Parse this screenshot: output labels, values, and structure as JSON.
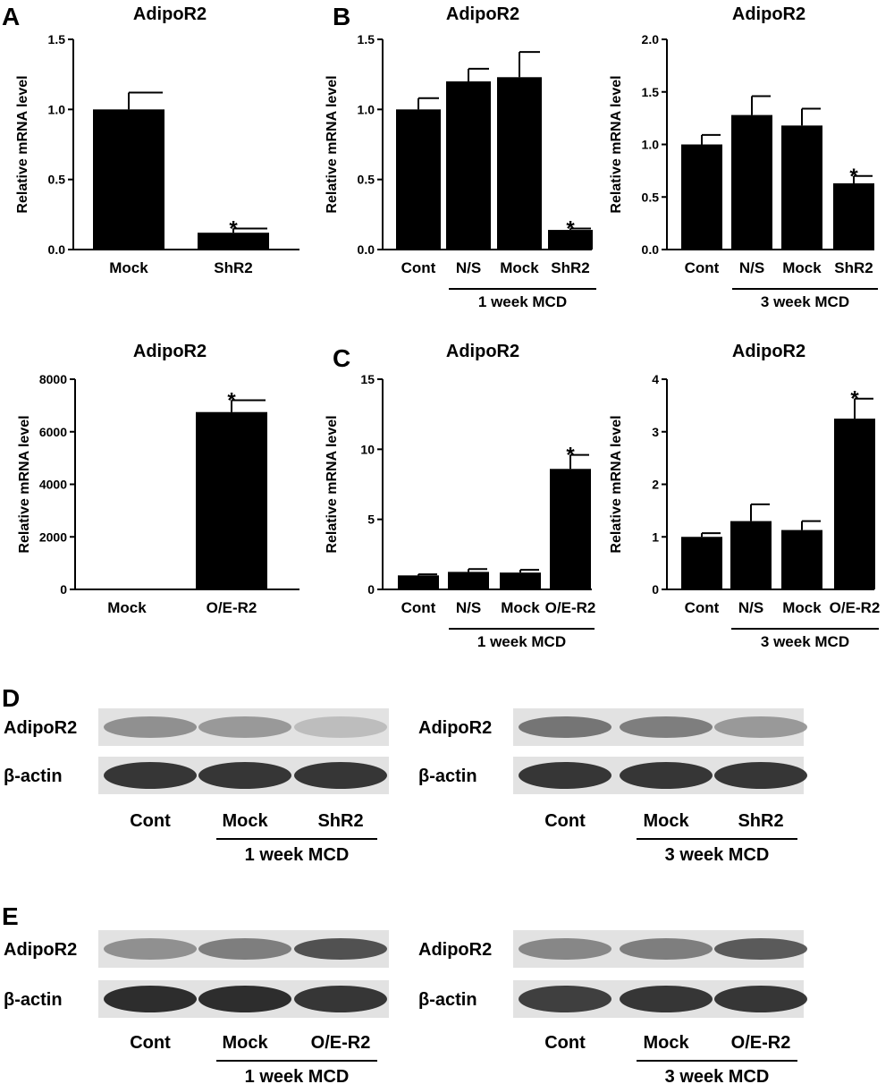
{
  "panel_letters": [
    "A",
    "B",
    "C",
    "D",
    "E"
  ],
  "colors": {
    "bar": "#000000",
    "axis": "#000000",
    "blot_bg": "#e2e2e2",
    "band_strong": "#222222",
    "band_faint": "#9a9a9a"
  },
  "chart_data": [
    {
      "id": "A1",
      "type": "bar",
      "title": "AdipoR2",
      "ylabel": "Relative mRNA level",
      "categories": [
        "Mock",
        "ShR2"
      ],
      "values": [
        1.0,
        0.12
      ],
      "errors": [
        0.12,
        0.03
      ],
      "significant": [
        false,
        true
      ],
      "ylim": [
        0,
        1.5
      ],
      "yticks": [
        "0.0",
        "0.5",
        "1.0",
        "1.5"
      ],
      "group_label": ""
    },
    {
      "id": "B1",
      "type": "bar",
      "title": "AdipoR2",
      "ylabel": "Relative mRNA level",
      "categories": [
        "Cont",
        "N/S",
        "Mock",
        "ShR2"
      ],
      "values": [
        1.0,
        1.2,
        1.23,
        0.14
      ],
      "errors": [
        0.08,
        0.09,
        0.18,
        0.01
      ],
      "significant": [
        false,
        false,
        false,
        true
      ],
      "ylim": [
        0,
        1.5
      ],
      "yticks": [
        "0.0",
        "0.5",
        "1.0",
        "1.5"
      ],
      "group_label": "1 week MCD"
    },
    {
      "id": "B2",
      "type": "bar",
      "title": "AdipoR2",
      "ylabel": "Relative mRNA level",
      "categories": [
        "Cont",
        "N/S",
        "Mock",
        "ShR2"
      ],
      "values": [
        1.0,
        1.28,
        1.18,
        0.63
      ],
      "errors": [
        0.09,
        0.18,
        0.16,
        0.07
      ],
      "significant": [
        false,
        false,
        false,
        true
      ],
      "ylim": [
        0,
        2.0
      ],
      "yticks": [
        "0.0",
        "0.5",
        "1.0",
        "1.5",
        "2.0"
      ],
      "group_label": "3 week MCD"
    },
    {
      "id": "A2",
      "type": "bar",
      "title": "AdipoR2",
      "ylabel": "Relative mRNA level",
      "categories": [
        "Mock",
        "O/E-R2"
      ],
      "values": [
        1,
        6750
      ],
      "errors": [
        0,
        450
      ],
      "significant": [
        false,
        true
      ],
      "ylim": [
        0,
        8000
      ],
      "yticks": [
        "0",
        "2000",
        "4000",
        "6000",
        "8000"
      ],
      "group_label": ""
    },
    {
      "id": "C1",
      "type": "bar",
      "title": "AdipoR2",
      "ylabel": "Relative mRNA level",
      "categories": [
        "Cont",
        "N/S",
        "Mock",
        "O/E-R2"
      ],
      "values": [
        1.0,
        1.25,
        1.2,
        8.6
      ],
      "errors": [
        0.08,
        0.2,
        0.2,
        1.0
      ],
      "significant": [
        false,
        false,
        false,
        true
      ],
      "ylim": [
        0,
        15
      ],
      "yticks": [
        "0",
        "5",
        "10",
        "15"
      ],
      "group_label": "1 week MCD"
    },
    {
      "id": "C2",
      "type": "bar",
      "title": "AdipoR2",
      "ylabel": "Relative mRNA level",
      "categories": [
        "Cont",
        "N/S",
        "Mock",
        "O/E-R2"
      ],
      "values": [
        1.0,
        1.3,
        1.13,
        3.25
      ],
      "errors": [
        0.07,
        0.32,
        0.17,
        0.38
      ],
      "significant": [
        false,
        false,
        false,
        true
      ],
      "ylim": [
        0,
        4
      ],
      "yticks": [
        "0",
        "1",
        "2",
        "3",
        "4"
      ],
      "group_label": "3 week MCD"
    }
  ],
  "blots": [
    {
      "id": "D1",
      "rows": [
        "AdipoR2",
        "β-actin"
      ],
      "lanes": [
        "Cont",
        "Mock",
        "ShR2"
      ],
      "group_label": "1 week MCD",
      "band_intensity": [
        [
          0.45,
          0.4,
          0.2
        ],
        [
          0.95,
          0.95,
          0.95
        ]
      ]
    },
    {
      "id": "D2",
      "rows": [
        "AdipoR2",
        "β-actin"
      ],
      "lanes": [
        "Cont",
        "Mock",
        "ShR2"
      ],
      "group_label": "3 week MCD",
      "band_intensity": [
        [
          0.6,
          0.55,
          0.4
        ],
        [
          0.95,
          0.95,
          0.95
        ]
      ]
    },
    {
      "id": "E1",
      "rows": [
        "AdipoR2",
        "β-actin"
      ],
      "lanes": [
        "Cont",
        "Mock",
        "O/E-R2"
      ],
      "group_label": "1 week MCD",
      "band_intensity": [
        [
          0.45,
          0.55,
          0.8
        ],
        [
          1.0,
          1.0,
          0.95
        ]
      ]
    },
    {
      "id": "E2",
      "rows": [
        "AdipoR2",
        "β-actin"
      ],
      "lanes": [
        "Cont",
        "Mock",
        "O/E-R2"
      ],
      "group_label": "3 week MCD",
      "band_intensity": [
        [
          0.5,
          0.55,
          0.75
        ],
        [
          0.9,
          0.95,
          0.95
        ]
      ]
    }
  ]
}
